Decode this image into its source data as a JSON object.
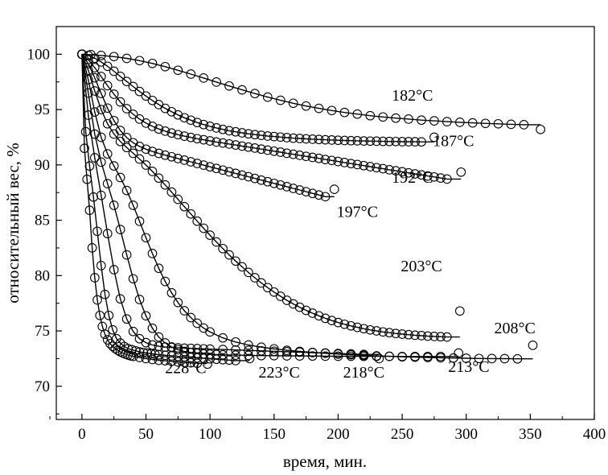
{
  "chart_data": {
    "type": "scatter",
    "xlabel": "время, мин.",
    "ylabel": "относительный вес, %",
    "xlim": [
      -20,
      400
    ],
    "ylim": [
      67,
      102.5
    ],
    "xticks": [
      0,
      50,
      100,
      150,
      200,
      250,
      300,
      350,
      400
    ],
    "yticks": [
      70,
      75,
      80,
      85,
      90,
      95,
      100
    ],
    "grid": false,
    "legend": "none",
    "marker": "open-circle",
    "line_color": "#000000",
    "series": [
      {
        "name": "182°C",
        "x": [
          0,
          7,
          15,
          25,
          35,
          45,
          55,
          65,
          75,
          85,
          95,
          105,
          115,
          125,
          135,
          145,
          155,
          165,
          175,
          185,
          195,
          205,
          215,
          225,
          235,
          245,
          255,
          265,
          275,
          285,
          295,
          305,
          315,
          325,
          335,
          345,
          358
        ],
        "y": [
          100.0,
          99.96,
          99.89,
          99.79,
          99.63,
          99.42,
          99.17,
          98.88,
          98.55,
          98.21,
          97.85,
          97.49,
          97.13,
          96.78,
          96.45,
          96.13,
          95.84,
          95.57,
          95.32,
          95.11,
          94.91,
          94.74,
          94.59,
          94.45,
          94.33,
          94.23,
          94.14,
          94.05,
          93.98,
          93.91,
          93.85,
          93.8,
          93.75,
          93.71,
          93.67,
          93.63,
          93.2
        ]
      },
      {
        "name": "187°C",
        "x": [
          0,
          5,
          10,
          15,
          20,
          25,
          30,
          35,
          40,
          45,
          50,
          55,
          60,
          65,
          70,
          75,
          80,
          85,
          90,
          95,
          100,
          105,
          110,
          115,
          120,
          125,
          130,
          135,
          140,
          145,
          150,
          155,
          160,
          165,
          170,
          175,
          180,
          185,
          190,
          195,
          200,
          205,
          210,
          215,
          220,
          225,
          230,
          235,
          240,
          245,
          250,
          255,
          260,
          265,
          275
        ],
        "y": [
          100.0,
          99.88,
          99.64,
          99.31,
          98.91,
          98.46,
          98.0,
          97.54,
          97.08,
          96.64,
          96.22,
          95.82,
          95.45,
          95.11,
          94.8,
          94.52,
          94.26,
          94.04,
          93.83,
          93.65,
          93.49,
          93.34,
          93.21,
          93.09,
          92.99,
          92.9,
          92.81,
          92.74,
          92.67,
          92.61,
          92.56,
          92.51,
          92.46,
          92.42,
          92.39,
          92.35,
          92.32,
          92.3,
          92.27,
          92.25,
          92.23,
          92.21,
          92.19,
          92.18,
          92.16,
          92.15,
          92.14,
          92.13,
          92.12,
          92.11,
          92.1,
          92.1,
          92.09,
          92.08,
          92.5
        ]
      },
      {
        "name": "192°C",
        "x": [
          0,
          5,
          10,
          15,
          20,
          25,
          30,
          35,
          40,
          45,
          50,
          55,
          60,
          65,
          70,
          75,
          80,
          85,
          90,
          95,
          100,
          105,
          110,
          115,
          120,
          125,
          130,
          135,
          140,
          145,
          150,
          155,
          160,
          165,
          170,
          175,
          180,
          185,
          190,
          195,
          200,
          205,
          210,
          215,
          220,
          225,
          230,
          235,
          240,
          245,
          250,
          255,
          260,
          265,
          270,
          275,
          280,
          285,
          296
        ],
        "y": [
          100.0,
          99.5,
          98.79,
          97.99,
          97.16,
          96.39,
          95.69,
          95.08,
          94.57,
          94.14,
          93.78,
          93.49,
          93.25,
          93.05,
          92.88,
          92.73,
          92.6,
          92.48,
          92.37,
          92.27,
          92.17,
          92.07,
          91.98,
          91.89,
          91.8,
          91.7,
          91.61,
          91.52,
          91.43,
          91.33,
          91.24,
          91.15,
          91.05,
          90.96,
          90.87,
          90.77,
          90.68,
          90.59,
          90.49,
          90.4,
          90.31,
          90.21,
          90.12,
          90.03,
          89.94,
          89.84,
          89.75,
          89.66,
          89.56,
          89.47,
          89.38,
          89.28,
          89.19,
          89.1,
          89.0,
          88.91,
          88.82,
          88.72,
          89.35
        ]
      },
      {
        "name": "197°C",
        "x": [
          0,
          5,
          10,
          15,
          20,
          25,
          30,
          35,
          40,
          45,
          50,
          55,
          60,
          65,
          70,
          75,
          80,
          85,
          90,
          95,
          100,
          105,
          110,
          115,
          120,
          125,
          130,
          135,
          140,
          145,
          150,
          155,
          160,
          165,
          170,
          175,
          180,
          185,
          190,
          197
        ],
        "y": [
          100.0,
          99.15,
          97.87,
          96.46,
          95.13,
          94.0,
          93.11,
          92.47,
          92.0,
          91.67,
          91.42,
          91.22,
          91.04,
          90.88,
          90.73,
          90.58,
          90.43,
          90.28,
          90.13,
          89.98,
          89.83,
          89.68,
          89.53,
          89.38,
          89.23,
          89.08,
          88.93,
          88.78,
          88.63,
          88.48,
          88.33,
          88.18,
          88.03,
          87.88,
          87.73,
          87.58,
          87.43,
          87.28,
          87.13,
          87.8
        ]
      },
      {
        "name": "203°C",
        "x": [
          0,
          5,
          10,
          15,
          20,
          25,
          30,
          35,
          40,
          45,
          50,
          55,
          60,
          65,
          70,
          75,
          80,
          85,
          90,
          95,
          100,
          105,
          110,
          115,
          120,
          125,
          130,
          135,
          140,
          145,
          150,
          155,
          160,
          165,
          170,
          175,
          180,
          185,
          190,
          195,
          200,
          205,
          210,
          215,
          220,
          225,
          230,
          235,
          240,
          245,
          250,
          255,
          260,
          265,
          270,
          275,
          280,
          285,
          295
        ],
        "y": [
          100.0,
          98.54,
          96.68,
          95.0,
          93.71,
          92.79,
          92.12,
          91.57,
          91.05,
          90.53,
          89.99,
          89.41,
          88.81,
          88.19,
          87.54,
          86.89,
          86.23,
          85.57,
          84.92,
          84.28,
          83.65,
          83.04,
          82.44,
          81.87,
          81.31,
          80.79,
          80.28,
          79.8,
          79.34,
          78.91,
          78.51,
          78.13,
          77.77,
          77.44,
          77.14,
          76.86,
          76.6,
          76.36,
          76.14,
          75.94,
          75.76,
          75.6,
          75.45,
          75.32,
          75.2,
          75.09,
          75.0,
          74.91,
          74.84,
          74.77,
          74.71,
          74.66,
          74.61,
          74.57,
          74.53,
          74.5,
          74.48,
          74.45,
          76.8
        ]
      },
      {
        "name": "208°C",
        "x": [
          0,
          5,
          10,
          15,
          20,
          25,
          30,
          35,
          40,
          45,
          50,
          55,
          60,
          65,
          70,
          75,
          80,
          85,
          90,
          95,
          100,
          110,
          120,
          130,
          140,
          150,
          160,
          170,
          180,
          190,
          200,
          210,
          220,
          230,
          240,
          250,
          260,
          270,
          280,
          290,
          300,
          310,
          320,
          330,
          340,
          352
        ],
        "y": [
          100.0,
          97.7,
          94.78,
          92.5,
          91.0,
          89.91,
          88.86,
          87.69,
          86.35,
          84.9,
          83.42,
          81.99,
          80.66,
          79.47,
          78.44,
          77.56,
          76.82,
          76.2,
          75.69,
          75.26,
          74.91,
          74.37,
          74.0,
          73.73,
          73.53,
          73.38,
          73.25,
          73.15,
          73.06,
          72.98,
          72.91,
          72.85,
          72.79,
          72.74,
          72.7,
          72.66,
          72.63,
          72.6,
          72.57,
          72.55,
          72.53,
          72.51,
          72.5,
          72.49,
          72.48,
          73.7
        ]
      },
      {
        "name": "213°C",
        "x": [
          0,
          5,
          10,
          15,
          20,
          25,
          30,
          35,
          40,
          45,
          50,
          55,
          60,
          65,
          70,
          75,
          80,
          85,
          90,
          95,
          100,
          105,
          110,
          120,
          130,
          140,
          150,
          160,
          170,
          180,
          190,
          200,
          210,
          220,
          230,
          240,
          250,
          260,
          270,
          280,
          294
        ],
        "y": [
          100.0,
          96.5,
          92.78,
          90.25,
          88.31,
          86.35,
          84.16,
          81.87,
          79.71,
          77.84,
          76.36,
          75.24,
          74.45,
          73.91,
          73.55,
          73.31,
          73.15,
          73.04,
          72.97,
          72.92,
          72.89,
          72.86,
          72.84,
          72.81,
          72.79,
          72.77,
          72.76,
          72.75,
          72.74,
          72.73,
          72.72,
          72.71,
          72.71,
          72.7,
          72.7,
          72.7,
          72.69,
          72.69,
          72.69,
          72.69,
          73.0
        ]
      },
      {
        "name": "218°C",
        "x": [
          0,
          5,
          10,
          15,
          20,
          25,
          30,
          35,
          40,
          45,
          50,
          55,
          60,
          65,
          70,
          75,
          80,
          85,
          90,
          95,
          100,
          110,
          120,
          130,
          140,
          150,
          160,
          170,
          180,
          190,
          200,
          210,
          220,
          232
        ],
        "y": [
          100.0,
          94.5,
          90.64,
          87.25,
          83.8,
          80.53,
          77.9,
          76.08,
          74.95,
          74.3,
          73.94,
          73.73,
          73.61,
          73.54,
          73.5,
          73.47,
          73.44,
          73.42,
          73.4,
          73.38,
          73.36,
          73.32,
          73.28,
          73.24,
          73.2,
          73.16,
          73.12,
          73.08,
          73.04,
          73.0,
          72.96,
          72.92,
          72.88,
          72.5
        ]
      },
      {
        "name": "223°C",
        "x": [
          0,
          3,
          6,
          9,
          12,
          15,
          18,
          21,
          24,
          27,
          30,
          33,
          36,
          39,
          42,
          45,
          48,
          51,
          54,
          57,
          60,
          65,
          70,
          75,
          80,
          85,
          90,
          95,
          100,
          105,
          110,
          115,
          120,
          131
        ],
        "y": [
          100.0,
          93.0,
          89.9,
          87.1,
          84.0,
          80.9,
          78.3,
          76.4,
          75.1,
          74.3,
          73.9,
          73.6,
          73.4,
          73.3,
          73.2,
          73.1,
          73.05,
          73.0,
          72.95,
          72.9,
          72.85,
          72.8,
          72.75,
          72.7,
          72.65,
          72.6,
          72.56,
          72.52,
          72.48,
          72.44,
          72.4,
          72.36,
          72.32,
          72.5
        ]
      },
      {
        "name": "228°C",
        "x": [
          0,
          2,
          4,
          6,
          8,
          10,
          12,
          14,
          16,
          18,
          20,
          22,
          24,
          26,
          28,
          30,
          32,
          34,
          36,
          38,
          40,
          45,
          50,
          55,
          60,
          65,
          70,
          75,
          80,
          85,
          90,
          98
        ],
        "y": [
          100.0,
          91.5,
          88.7,
          85.9,
          82.5,
          79.8,
          77.8,
          76.4,
          75.4,
          74.7,
          74.2,
          73.85,
          73.6,
          73.4,
          73.25,
          73.1,
          73.0,
          72.9,
          72.82,
          72.75,
          72.7,
          72.6,
          72.5,
          72.42,
          72.35,
          72.3,
          72.25,
          72.2,
          72.16,
          72.12,
          72.08,
          72.0
        ]
      }
    ],
    "annotations": [
      {
        "text": "182°C",
        "x": 258,
        "y": 95.8
      },
      {
        "text": "187°C",
        "x": 290,
        "y": 91.7
      },
      {
        "text": "192°C",
        "x": 258,
        "y": 88.4
      },
      {
        "text": "197°C",
        "x": 215,
        "y": 85.3
      },
      {
        "text": "203°C",
        "x": 265,
        "y": 80.4
      },
      {
        "text": "208°C",
        "x": 338,
        "y": 74.8
      },
      {
        "text": "213°C",
        "x": 302,
        "y": 71.3
      },
      {
        "text": "218°C",
        "x": 220,
        "y": 70.8
      },
      {
        "text": "223°C",
        "x": 154,
        "y": 70.8
      },
      {
        "text": "228°C",
        "x": 81,
        "y": 71.2
      }
    ]
  }
}
